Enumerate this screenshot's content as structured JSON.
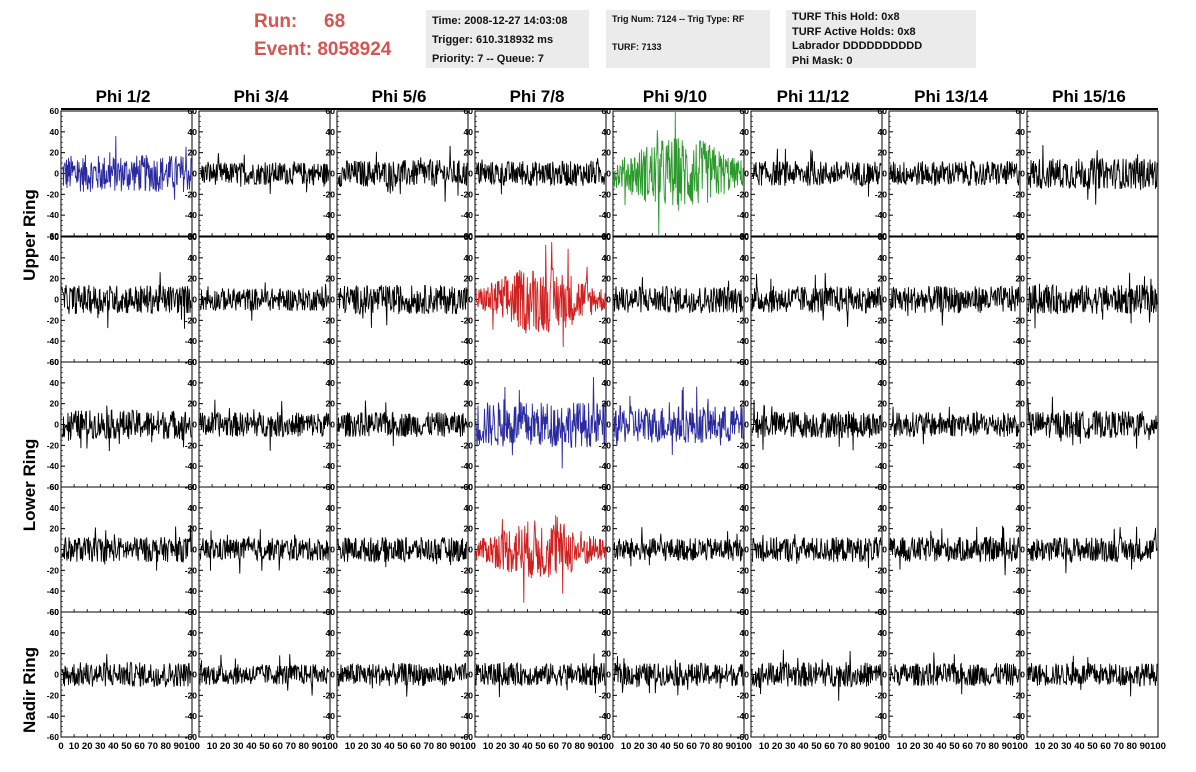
{
  "header": {
    "run_label": "Run:",
    "run_value": "68",
    "event_label": "Event:",
    "event_value": "8058924",
    "time_line": "Time: 2008-12-27 14:03:08",
    "trigger_line": "Trigger: 610.318932 ms",
    "priority_line": "Priority: 7 -- Queue: 7",
    "trig_line": "Trig Num: 7124 -- Trig Type: RF",
    "turf_line": "TURF: 7133",
    "turf_this_hold": "TURF This Hold: 0x8",
    "turf_active_holds": "TURF Active Holds: 0x8",
    "labrador": "Labrador DDDDDDDDDD",
    "phi_mask": "Phi Mask: 0"
  },
  "columns": [
    "Phi 1/2",
    "Phi 3/4",
    "Phi 5/6",
    "Phi 7/8",
    "Phi 9/10",
    "Phi 11/12",
    "Phi 13/14",
    "Phi 15/16"
  ],
  "rings": [
    "Upper Ring",
    "Lower Ring",
    "Nadir Ring"
  ],
  "colors": {
    "default": "#000000",
    "blue": "#2a2aa0",
    "green": "#2a9a2a",
    "red": "#d02020",
    "header_red": "#d9534f",
    "box_bg": "#ebebeb"
  },
  "chart_data": {
    "type": "line",
    "description_grid": "5 rows x 8 columns of waveform panels",
    "ylim": [
      -60,
      60
    ],
    "yticks": [
      -60,
      -40,
      -20,
      0,
      20,
      40,
      60
    ],
    "xlim": [
      0,
      100
    ],
    "xticks": [
      0,
      10,
      20,
      30,
      40,
      50,
      60,
      70,
      80,
      90,
      100
    ],
    "x_tick_labels_bottom": [
      "0",
      "10",
      "20",
      "30",
      "40",
      "50",
      "60",
      "70",
      "80",
      "90",
      "100"
    ],
    "panel_colors": [
      [
        "blue",
        "default",
        "default",
        "default",
        "green",
        "default",
        "default",
        "default"
      ],
      [
        "default",
        "default",
        "default",
        "red",
        "default",
        "default",
        "default",
        "default"
      ],
      [
        "default",
        "default",
        "default",
        "blue",
        "blue",
        "default",
        "default",
        "default"
      ],
      [
        "default",
        "default",
        "default",
        "red",
        "default",
        "default",
        "default",
        "default"
      ],
      [
        "default",
        "default",
        "default",
        "default",
        "default",
        "default",
        "default",
        "default"
      ]
    ],
    "panel_amplitude": [
      [
        18,
        11,
        13,
        12,
        25,
        12,
        12,
        15
      ],
      [
        14,
        11,
        14,
        22,
        13,
        13,
        13,
        14
      ],
      [
        14,
        12,
        12,
        22,
        18,
        13,
        12,
        13
      ],
      [
        12,
        11,
        12,
        20,
        11,
        12,
        12,
        12
      ],
      [
        12,
        10,
        11,
        11,
        11,
        12,
        11,
        11
      ]
    ]
  }
}
